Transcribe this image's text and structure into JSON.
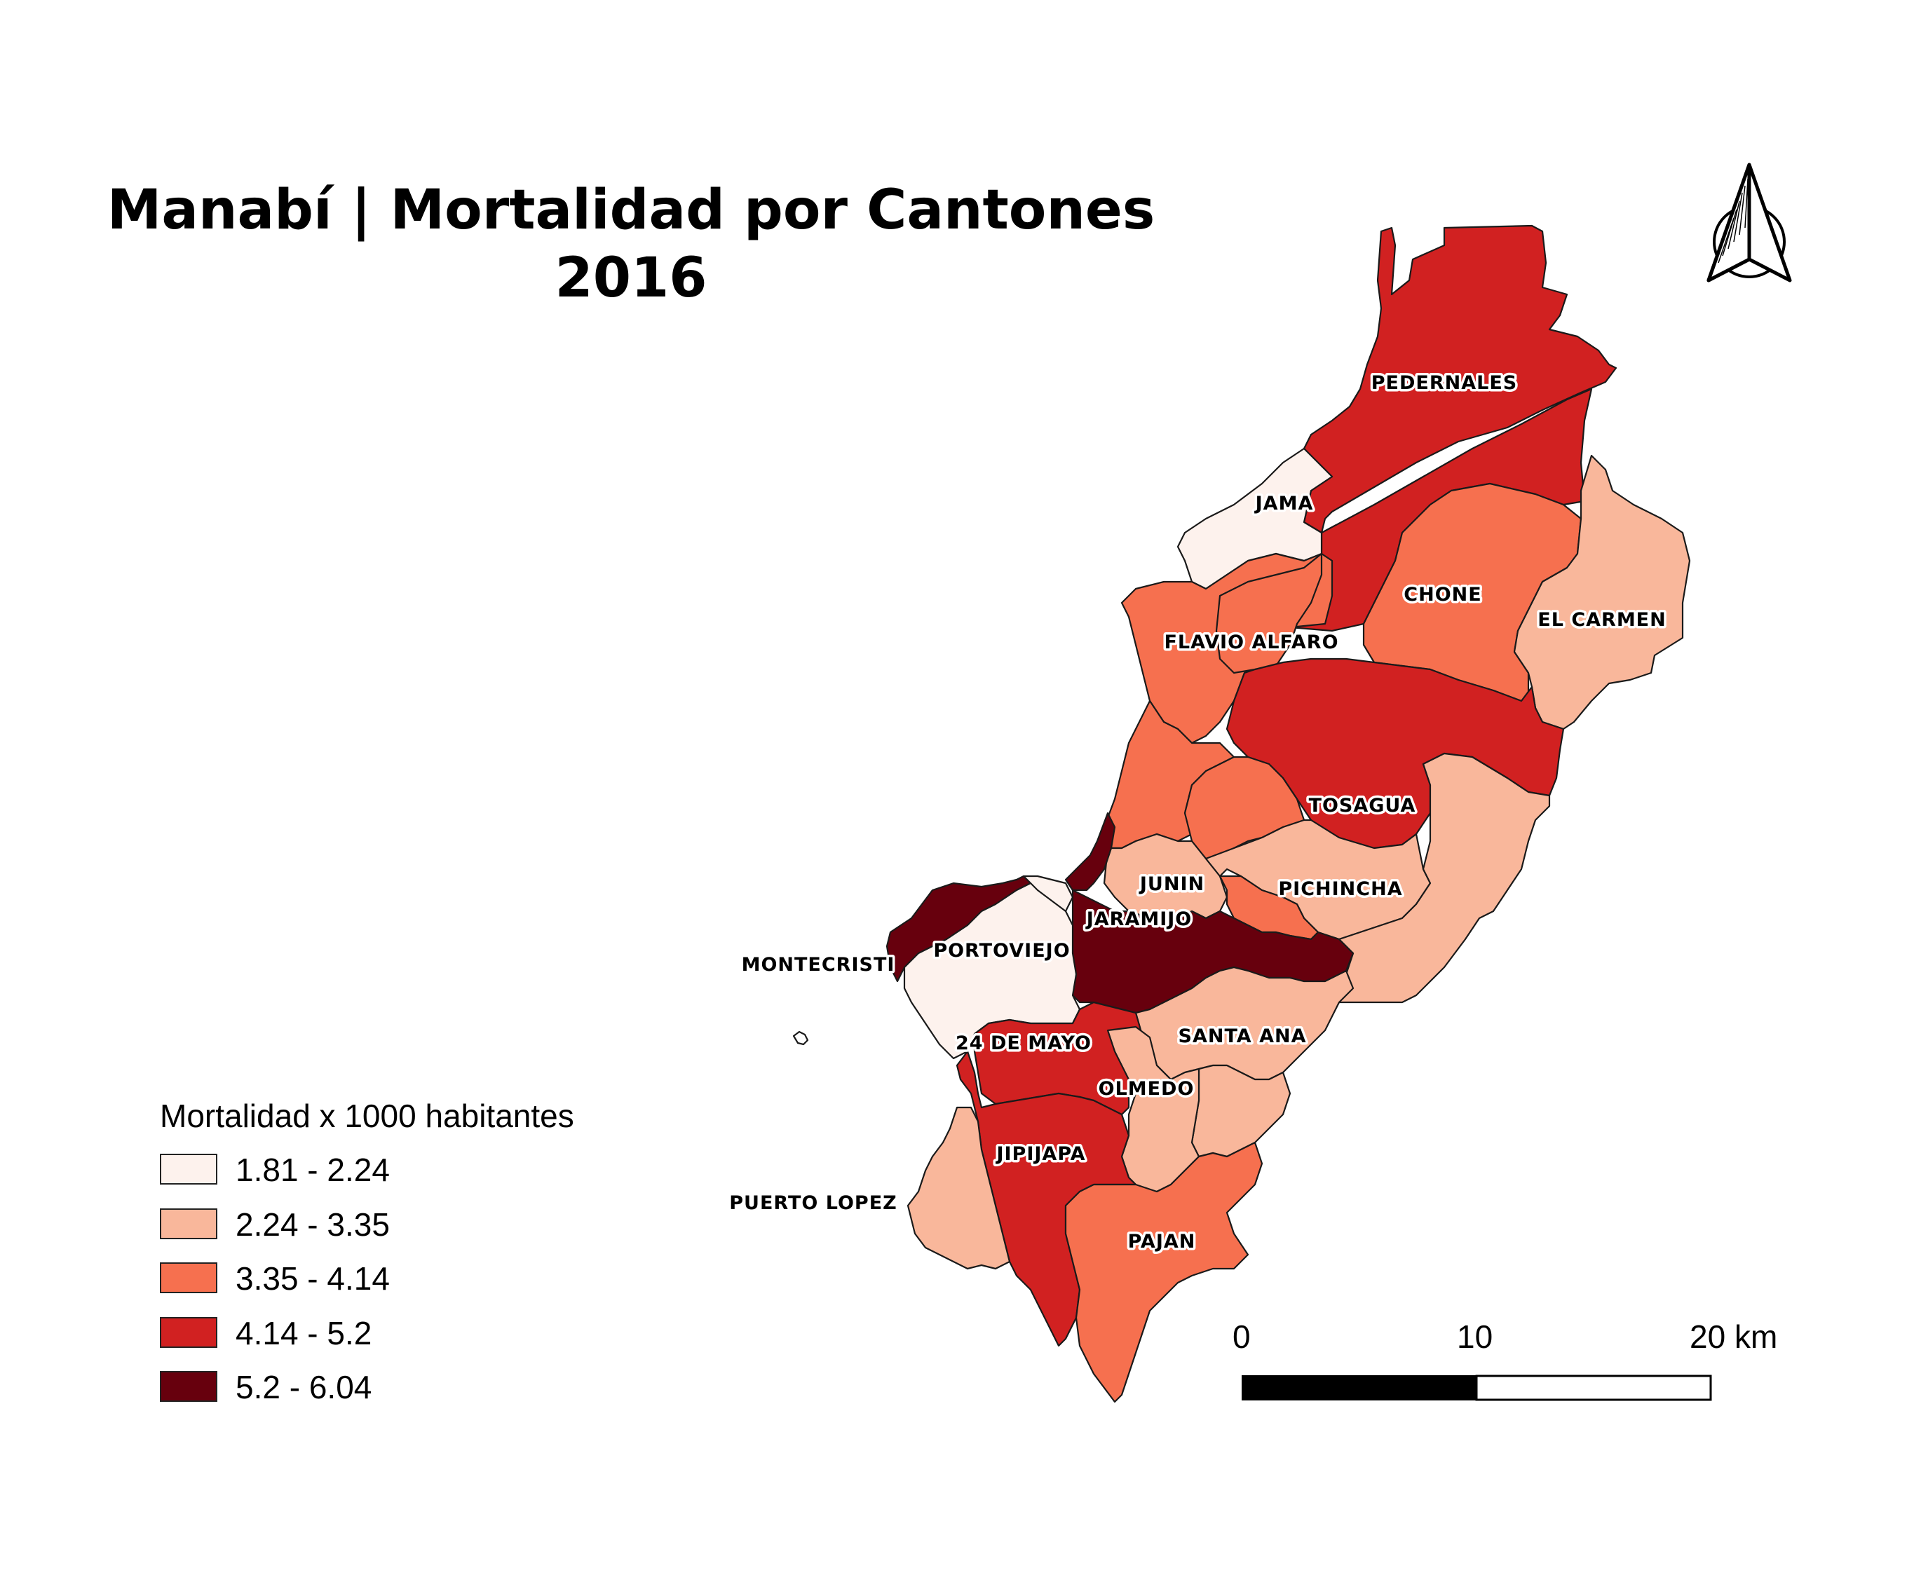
{
  "title": {
    "line1": "Manabí | Mortalidad por Cantones",
    "line2": "2016"
  },
  "colors": {
    "class1": "#fdf2ed",
    "class2": "#f9b79b",
    "class3": "#f6704f",
    "class4": "#d12121",
    "class5": "#67000d",
    "border": "#1a1a1a"
  },
  "legend": {
    "title": "Mortalidad x 1000 habitantes",
    "items": [
      {
        "label": "1.81 - 2.24",
        "color": "#fdf2ed"
      },
      {
        "label": "2.24 - 3.35",
        "color": "#f9b79b"
      },
      {
        "label": "3.35 - 4.14",
        "color": "#f6704f"
      },
      {
        "label": "4.14 - 5.2",
        "color": "#d12121"
      },
      {
        "label": "5.2 - 6.04",
        "color": "#67000d"
      }
    ]
  },
  "cantons": [
    {
      "name": "PEDERNALES",
      "class": 4
    },
    {
      "name": "JAMA",
      "class": 1
    },
    {
      "name": "CHONE",
      "class": 3
    },
    {
      "name": "EL CARMEN",
      "class": 2
    },
    {
      "name": "FLAVIO ALFARO",
      "class": 3
    },
    {
      "name": "TOSAGUA",
      "class": 4
    },
    {
      "name": "JUNIN",
      "class": 2
    },
    {
      "name": "PICHINCHA",
      "class": 2
    },
    {
      "name": "JARAMIJO",
      "class": 5
    },
    {
      "name": "PORTOVIEJO",
      "class": 1
    },
    {
      "name": "MONTECRISTI",
      "class": 5
    },
    {
      "name": "SANTA ANA",
      "class": 2
    },
    {
      "name": "24 DE MAYO",
      "class": 4
    },
    {
      "name": "OLMEDO",
      "class": 2
    },
    {
      "name": "JIPIJAPA",
      "class": 4
    },
    {
      "name": "PUERTO LOPEZ",
      "class": 2
    },
    {
      "name": "PAJAN",
      "class": 3
    }
  ],
  "scale_bar": {
    "labels": [
      "0",
      "10",
      "20 km"
    ]
  },
  "north_arrow": {
    "icon": "north-arrow-icon"
  }
}
